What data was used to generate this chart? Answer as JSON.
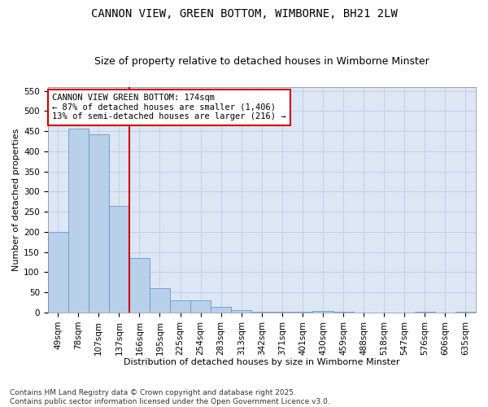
{
  "title": "CANNON VIEW, GREEN BOTTOM, WIMBORNE, BH21 2LW",
  "subtitle": "Size of property relative to detached houses in Wimborne Minster",
  "xlabel": "Distribution of detached houses by size in Wimborne Minster",
  "ylabel": "Number of detached properties",
  "footnote": "Contains HM Land Registry data © Crown copyright and database right 2025.\nContains public sector information licensed under the Open Government Licence v3.0.",
  "categories": [
    "49sqm",
    "78sqm",
    "107sqm",
    "137sqm",
    "166sqm",
    "195sqm",
    "225sqm",
    "254sqm",
    "283sqm",
    "313sqm",
    "342sqm",
    "371sqm",
    "401sqm",
    "430sqm",
    "459sqm",
    "488sqm",
    "518sqm",
    "547sqm",
    "576sqm",
    "606sqm",
    "635sqm"
  ],
  "values": [
    200,
    457,
    442,
    265,
    135,
    60,
    30,
    30,
    14,
    7,
    3,
    3,
    3,
    5,
    1,
    0,
    0,
    0,
    1,
    0,
    1
  ],
  "bar_color": "#b8d0ea",
  "bar_edge_color": "#6699cc",
  "grid_color": "#c0cce0",
  "plot_bg_color": "#dce6f5",
  "fig_bg_color": "#ffffff",
  "vline_color": "#cc0000",
  "vline_x_index": 4,
  "annotation_text": "CANNON VIEW GREEN BOTTOM: 174sqm\n← 87% of detached houses are smaller (1,406)\n13% of semi-detached houses are larger (216) →",
  "annotation_box_color": "#ffffff",
  "annotation_box_edge": "#cc0000",
  "ylim": [
    0,
    560
  ],
  "yticks": [
    0,
    50,
    100,
    150,
    200,
    250,
    300,
    350,
    400,
    450,
    500,
    550
  ],
  "title_fontsize": 10,
  "subtitle_fontsize": 9,
  "ylabel_fontsize": 8,
  "xlabel_fontsize": 8,
  "tick_fontsize": 7.5,
  "annot_fontsize": 7.5,
  "footnote_fontsize": 6.5
}
